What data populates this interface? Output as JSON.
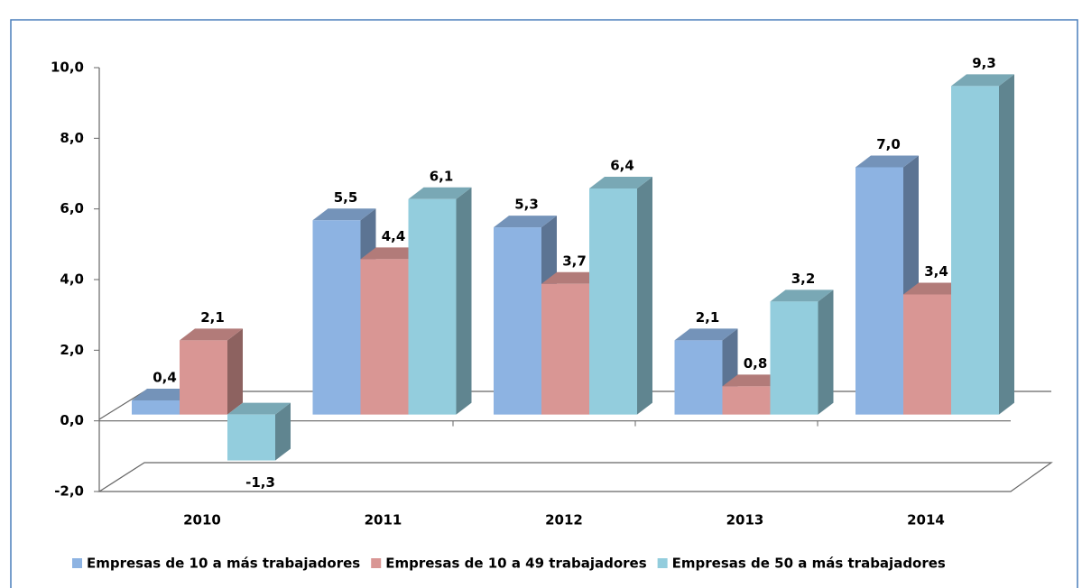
{
  "chart_data": {
    "type": "bar3d",
    "categories": [
      "2010",
      "2011",
      "2012",
      "2013",
      "2014"
    ],
    "series": [
      {
        "name": "Empresas de 10 a más trabajadores",
        "color": "#8db3e2",
        "values": [
          0.4,
          5.5,
          5.3,
          2.1,
          7.0
        ],
        "value_labels": [
          "0,4",
          "5,5",
          "5,3",
          "2,1",
          "7,0"
        ]
      },
      {
        "name": "Empresas de 10 a 49 trabajadores",
        "color": "#d99694",
        "values": [
          2.1,
          4.4,
          3.7,
          0.8,
          3.4
        ],
        "value_labels": [
          "2,1",
          "4,4",
          "3,7",
          "0,8",
          "3,4"
        ]
      },
      {
        "name": "Empresas de 50 a más trabajadores",
        "color": "#93cddd",
        "values": [
          -1.3,
          6.1,
          6.4,
          3.2,
          9.3
        ],
        "value_labels": [
          "-1,3",
          "6,1",
          "6,4",
          "3,2",
          "9,3"
        ]
      }
    ],
    "ylim": [
      -2,
      10
    ],
    "yticks": [
      {
        "value": -2,
        "label": "-2,0"
      },
      {
        "value": 0,
        "label": "0,0"
      },
      {
        "value": 2,
        "label": "2,0"
      },
      {
        "value": 4,
        "label": "4,0"
      },
      {
        "value": 6,
        "label": "6,0"
      },
      {
        "value": 8,
        "label": "8,0"
      },
      {
        "value": 10,
        "label": "10,0"
      }
    ],
    "legend": "bottom"
  }
}
